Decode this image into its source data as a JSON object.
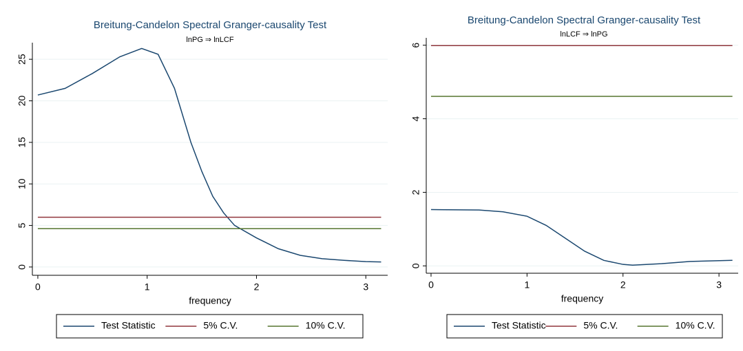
{
  "chart_data": [
    {
      "type": "line",
      "title": "Breitung-Candelon Spectral Granger-causality Test",
      "subtitle": "lnPG ⇒ lnLCF",
      "x_label": "frequency",
      "x": [
        0,
        0.25,
        0.5,
        0.75,
        0.95,
        1.1,
        1.25,
        1.4,
        1.5,
        1.6,
        1.7,
        1.8,
        2.0,
        2.2,
        2.4,
        2.6,
        2.8,
        3.0,
        3.14
      ],
      "series": [
        {
          "name": "Test Statistic",
          "color": "#1a476f",
          "values": [
            20.7,
            21.5,
            23.3,
            25.3,
            26.3,
            25.6,
            21.5,
            15,
            11.5,
            8.5,
            6.5,
            5,
            3.5,
            2.2,
            1.4,
            1.0,
            0.8,
            0.65,
            0.6
          ]
        },
        {
          "name": "5% C.V.",
          "color": "#90353b",
          "values": [
            5.99,
            5.99,
            5.99,
            5.99,
            5.99,
            5.99,
            5.99,
            5.99,
            5.99,
            5.99,
            5.99,
            5.99,
            5.99,
            5.99,
            5.99,
            5.99,
            5.99,
            5.99,
            5.99
          ]
        },
        {
          "name": "10% C.V.",
          "color": "#55752f",
          "values": [
            4.61,
            4.61,
            4.61,
            4.61,
            4.61,
            4.61,
            4.61,
            4.61,
            4.61,
            4.61,
            4.61,
            4.61,
            4.61,
            4.61,
            4.61,
            4.61,
            4.61,
            4.61,
            4.61
          ]
        }
      ],
      "xlim": [
        -0.05,
        3.2
      ],
      "xticks": [
        0,
        1,
        2,
        3
      ],
      "ylim": [
        -1,
        27
      ],
      "yticks": [
        0,
        5,
        10,
        15,
        20,
        25
      ],
      "grid": true,
      "legend": "bottom"
    },
    {
      "type": "line",
      "title": "Breitung-Candelon Spectral Granger-causality Test",
      "subtitle": "lnLCF ⇒ lnPG",
      "x_label": "frequency",
      "x": [
        0,
        0.5,
        0.75,
        1.0,
        1.2,
        1.4,
        1.6,
        1.8,
        2.0,
        2.1,
        2.4,
        2.7,
        3.14
      ],
      "series": [
        {
          "name": "Test Statistic",
          "color": "#1a476f",
          "values": [
            1.53,
            1.52,
            1.47,
            1.35,
            1.1,
            0.75,
            0.4,
            0.15,
            0.04,
            0.02,
            0.06,
            0.12,
            0.15
          ]
        },
        {
          "name": "5% C.V.",
          "color": "#90353b",
          "values": [
            5.99,
            5.99,
            5.99,
            5.99,
            5.99,
            5.99,
            5.99,
            5.99,
            5.99,
            5.99,
            5.99,
            5.99,
            5.99
          ]
        },
        {
          "name": "10% C.V.",
          "color": "#55752f",
          "values": [
            4.61,
            4.61,
            4.61,
            4.61,
            4.61,
            4.61,
            4.61,
            4.61,
            4.61,
            4.61,
            4.61,
            4.61,
            4.61
          ]
        }
      ],
      "xlim": [
        -0.05,
        3.2
      ],
      "xticks": [
        0,
        1,
        2,
        3
      ],
      "ylim": [
        -0.2,
        6.2
      ],
      "yticks": [
        0,
        2,
        4,
        6
      ],
      "grid": true,
      "legend": "bottom"
    }
  ]
}
